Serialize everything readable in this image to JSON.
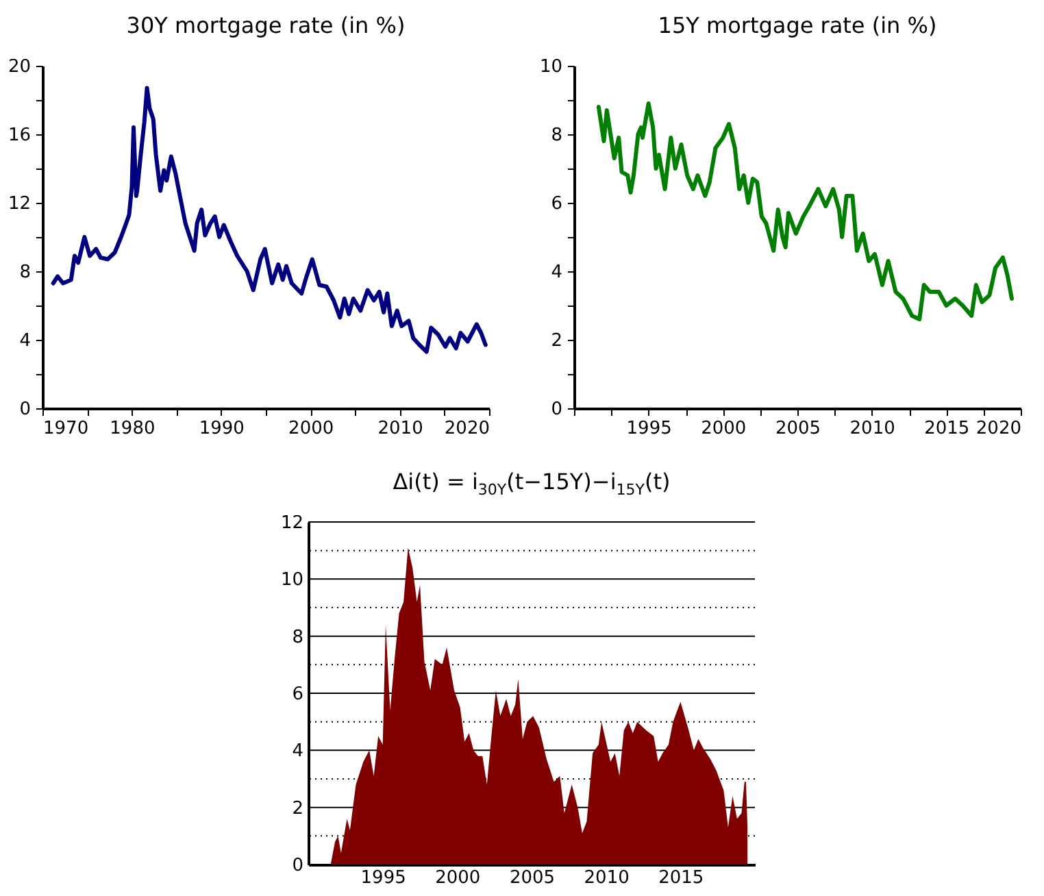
{
  "chart_data": [
    {
      "type": "line",
      "title": "30Y mortgage rate (in %)",
      "xlim": [
        1970,
        2020
      ],
      "ylim": [
        0,
        20
      ],
      "xticks": [
        1970,
        {
          "value": 1975,
          "label": null
        },
        1980,
        {
          "value": 1985,
          "label": null
        },
        1990,
        {
          "value": 1995,
          "label": null
        },
        2000,
        {
          "value": 2005,
          "label": null
        },
        2010,
        {
          "value": 2015,
          "label": null
        },
        2020
      ],
      "yticks": [
        0,
        {
          "value": 2,
          "label": null
        },
        4,
        {
          "value": 6,
          "label": null
        },
        8,
        {
          "value": 10,
          "label": null
        },
        12,
        {
          "value": 14,
          "label": null
        },
        16,
        {
          "value": 18,
          "label": null
        },
        20
      ],
      "series": [
        {
          "color": "#000080",
          "x": [
            1971.2,
            1971.7,
            1972.3,
            1973.2,
            1973.6,
            1974.0,
            1974.7,
            1975.3,
            1976.0,
            1976.5,
            1977.3,
            1978.1,
            1978.8,
            1979.3,
            1979.7,
            1980.0,
            1980.2,
            1980.5,
            1980.6,
            1981.0,
            1981.4,
            1981.7,
            1982.0,
            1982.4,
            1982.7,
            1983.2,
            1983.6,
            1983.9,
            1984.4,
            1984.9,
            1985.5,
            1986.0,
            1986.5,
            1987.0,
            1987.3,
            1987.8,
            1988.2,
            1988.8,
            1989.3,
            1989.8,
            1990.3,
            1991.1,
            1991.8,
            1992.9,
            1993.6,
            1994.4,
            1994.9,
            1995.7,
            1996.4,
            1996.9,
            1997.3,
            1997.9,
            1999.0,
            1999.5,
            2000.2,
            2001.0,
            2001.8,
            2002.6,
            2003.3,
            2003.8,
            2004.3,
            2004.8,
            2005.6,
            2006.4,
            2007.1,
            2007.7,
            2008.2,
            2008.6,
            2009.1,
            2009.7,
            2010.2,
            2011.0,
            2011.5,
            2012.2,
            2013.0,
            2013.5,
            2014.3,
            2015.1,
            2015.6,
            2016.3,
            2016.8,
            2017.6,
            2018.6,
            2019.1,
            2019.6
          ],
          "values": [
            7.3,
            7.7,
            7.3,
            7.5,
            8.9,
            8.5,
            10.0,
            8.9,
            9.3,
            8.8,
            8.7,
            9.1,
            10.0,
            10.7,
            11.3,
            12.9,
            16.4,
            12.4,
            12.7,
            14.8,
            16.7,
            18.7,
            17.5,
            16.9,
            14.8,
            12.7,
            13.9,
            13.3,
            14.7,
            13.7,
            12.1,
            10.8,
            10.0,
            9.2,
            10.8,
            11.6,
            10.1,
            10.8,
            11.2,
            10.0,
            10.7,
            9.7,
            8.9,
            8.0,
            6.9,
            8.7,
            9.3,
            7.3,
            8.4,
            7.5,
            8.3,
            7.3,
            6.7,
            7.6,
            8.7,
            7.2,
            7.1,
            6.3,
            5.3,
            6.4,
            5.5,
            6.4,
            5.7,
            6.9,
            6.3,
            6.8,
            5.6,
            6.7,
            4.8,
            5.7,
            4.8,
            5.1,
            4.1,
            3.7,
            3.3,
            4.7,
            4.3,
            3.6,
            4.1,
            3.5,
            4.4,
            3.9,
            4.9,
            4.4,
            3.7
          ]
        }
      ]
    },
    {
      "type": "line",
      "title": "15Y mortgage rate (in %)",
      "xlim": [
        1990,
        2020
      ],
      "ylim": [
        0,
        10
      ],
      "xticks": [
        {
          "value": 1990,
          "label": null
        },
        {
          "value": 1992.5,
          "label": null
        },
        1995,
        {
          "value": 1997.5,
          "label": null
        },
        2000,
        {
          "value": 2002.5,
          "label": null
        },
        2005,
        {
          "value": 2007.5,
          "label": null
        },
        2010,
        {
          "value": 2012.5,
          "label": null
        },
        2015,
        {
          "value": 2017.5,
          "label": null
        },
        2020
      ],
      "yticks": [
        0,
        {
          "value": 1,
          "label": null
        },
        2,
        {
          "value": 3,
          "label": null
        },
        4,
        {
          "value": 5,
          "label": null
        },
        6,
        {
          "value": 7,
          "label": null
        },
        8,
        {
          "value": 9,
          "label": null
        },
        10
      ],
      "series": [
        {
          "color": "#007f00",
          "x": [
            1991.65,
            1992.0,
            1992.2,
            1992.7,
            1993.0,
            1993.2,
            1993.6,
            1993.8,
            1994.0,
            1994.3,
            1994.5,
            1994.6,
            1995.0,
            1995.3,
            1995.5,
            1995.7,
            1996.1,
            1996.5,
            1996.8,
            1997.2,
            1997.6,
            1998.0,
            1998.3,
            1998.8,
            1999.1,
            1999.5,
            2000.0,
            2000.4,
            2000.8,
            2001.1,
            2001.4,
            2001.7,
            2002.0,
            2002.3,
            2002.6,
            2002.9,
            2003.4,
            2003.7,
            2004.0,
            2004.2,
            2004.4,
            2004.9,
            2005.4,
            2005.8,
            2006.4,
            2006.9,
            2007.4,
            2007.8,
            2008.0,
            2008.3,
            2008.7,
            2009.0,
            2009.4,
            2009.8,
            2010.2,
            2010.7,
            2011.1,
            2011.6,
            2012.1,
            2012.7,
            2013.2,
            2013.5,
            2013.9,
            2014.5,
            2015.0,
            2015.6,
            2016.1,
            2016.7,
            2017.0,
            2017.4,
            2017.9,
            2018.3,
            2018.8,
            2019.1,
            2019.4
          ],
          "values": [
            8.8,
            7.8,
            8.7,
            7.3,
            7.9,
            6.9,
            6.8,
            6.3,
            6.8,
            8.0,
            8.2,
            7.9,
            8.9,
            8.2,
            7.0,
            7.4,
            6.4,
            7.9,
            7.0,
            7.7,
            6.8,
            6.4,
            6.8,
            6.2,
            6.6,
            7.6,
            7.9,
            8.3,
            7.6,
            6.4,
            6.8,
            6.0,
            6.7,
            6.6,
            5.6,
            5.4,
            4.6,
            5.8,
            5.0,
            4.7,
            5.7,
            5.1,
            5.6,
            5.9,
            6.4,
            5.9,
            6.4,
            5.8,
            5.0,
            6.2,
            6.2,
            4.6,
            5.1,
            4.3,
            4.5,
            3.6,
            4.3,
            3.4,
            3.2,
            2.7,
            2.6,
            3.6,
            3.4,
            3.4,
            3.0,
            3.2,
            3.0,
            2.7,
            3.6,
            3.1,
            3.3,
            4.1,
            4.4,
            3.9,
            3.2
          ]
        }
      ]
    },
    {
      "type": "area",
      "title": "Δi(t) = i$_{30Y}$(t−15Y)−i$_{15Y}$(t)",
      "xlim": [
        1990,
        2020
      ],
      "ylim": [
        0,
        12
      ],
      "grid": "y",
      "xticks": [
        1995,
        2000,
        2005,
        2010,
        2015
      ],
      "yticks": [
        0,
        {
          "value": 1,
          "label": null
        },
        2,
        {
          "value": 3,
          "label": null
        },
        4,
        {
          "value": 5,
          "label": null
        },
        6,
        {
          "value": 7,
          "label": null
        },
        8,
        {
          "value": 9,
          "label": null
        },
        10,
        {
          "value": 11,
          "label": null
        },
        12
      ],
      "series": [
        {
          "color": "#800000",
          "x": [
            1991.52,
            1991.8,
            1992.0,
            1992.2,
            1992.6,
            1992.8,
            1993.2,
            1993.7,
            1994.1,
            1994.4,
            1994.7,
            1995.0,
            1995.2,
            1995.5,
            1995.8,
            1996.1,
            1996.4,
            1996.7,
            1997.0,
            1997.3,
            1997.5,
            1997.8,
            1998.2,
            1998.5,
            1999.0,
            1999.3,
            1999.8,
            2000.2,
            2000.5,
            2000.8,
            2001.1,
            2001.4,
            2001.7,
            2002.0,
            2002.3,
            2002.6,
            2002.9,
            2003.3,
            2003.6,
            2003.9,
            2004.1,
            2004.4,
            2004.7,
            2005.1,
            2005.5,
            2006.0,
            2006.5,
            2006.9,
            2007.2,
            2007.7,
            2008.1,
            2008.4,
            2008.7,
            2009.1,
            2009.5,
            2009.7,
            2010.3,
            2010.6,
            2010.9,
            2011.2,
            2011.5,
            2011.8,
            2012.1,
            2012.7,
            2013.2,
            2013.5,
            2013.8,
            2014.2,
            2014.5,
            2015.0,
            2015.5,
            2015.9,
            2016.2,
            2016.5,
            2017.0,
            2017.4,
            2017.9,
            2018.2,
            2018.5,
            2018.8,
            2019.1,
            2019.3,
            2019.4,
            2019.5
          ],
          "values": [
            0.05,
            0.8,
            1.0,
            0.4,
            1.6,
            1.2,
            2.8,
            3.6,
            4.0,
            3.1,
            4.5,
            4.2,
            8.4,
            5.4,
            7.2,
            8.8,
            9.2,
            11.1,
            10.4,
            9.2,
            9.8,
            7.1,
            6.1,
            7.2,
            7.0,
            7.6,
            6.1,
            5.5,
            4.3,
            4.6,
            4.0,
            3.8,
            3.8,
            2.8,
            4.5,
            6.1,
            5.2,
            5.8,
            5.2,
            5.6,
            6.5,
            4.4,
            5.0,
            5.2,
            4.8,
            3.7,
            2.9,
            3.1,
            1.8,
            2.8,
            2.0,
            1.1,
            1.5,
            3.9,
            4.2,
            5.0,
            3.6,
            3.9,
            3.1,
            4.7,
            5.0,
            4.6,
            5.0,
            4.7,
            4.5,
            3.6,
            3.9,
            4.2,
            5.0,
            5.7,
            4.8,
            4.0,
            4.4,
            4.1,
            3.7,
            3.3,
            2.6,
            1.3,
            2.4,
            1.6,
            1.8,
            2.9,
            2.9,
            1.3
          ]
        }
      ]
    }
  ]
}
